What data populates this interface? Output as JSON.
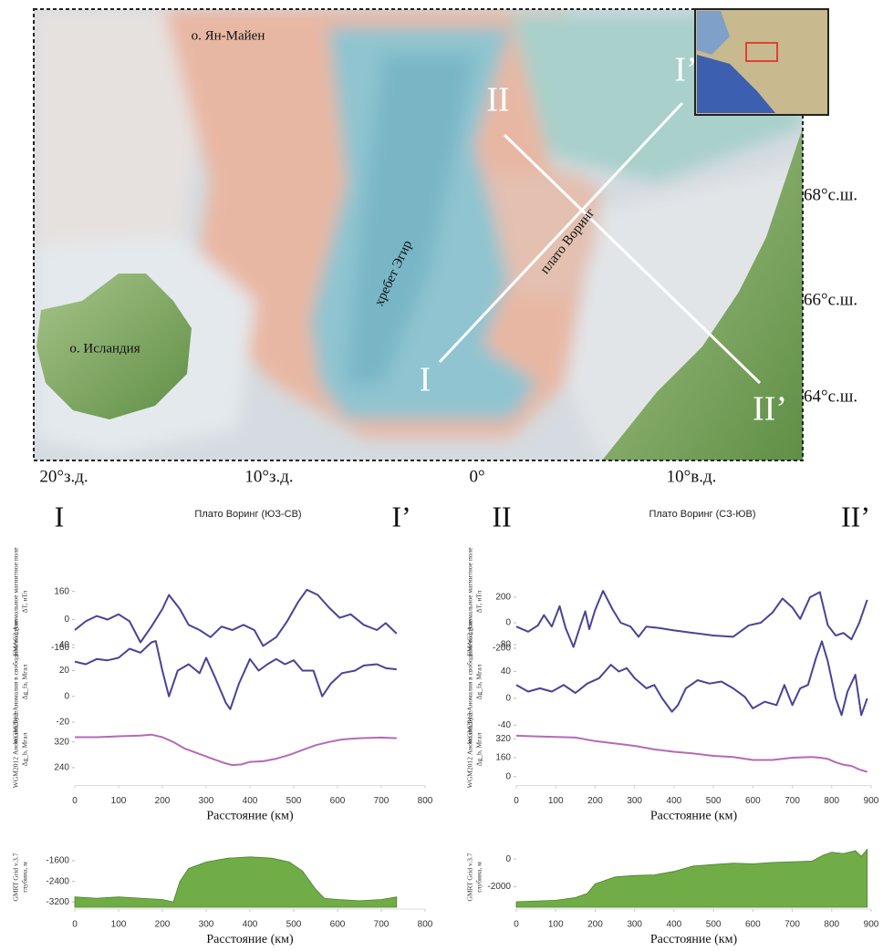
{
  "map": {
    "places": [
      "о. Ян-Майен",
      "о. Исландия",
      "хребет Эгир",
      "плато Воринг"
    ],
    "profile_ends": [
      "I",
      "I’",
      "II",
      "II’"
    ],
    "latitudes": [
      "68°с.ш.",
      "66°с.ш.",
      "64°с.ш."
    ],
    "longitudes": [
      "20°з.д.",
      "10°з.д.",
      "0°",
      "10°в.д."
    ]
  },
  "chart_data": [
    {
      "type": "line",
      "title_left": "I",
      "title": "Плато Воринг (ЮЗ-СВ)",
      "title_right": "I’",
      "ylabel": [
        "EMAG2 Аномальное магнитное поле",
        "ΔT, нТл"
      ],
      "xlim": [
        0,
        800
      ],
      "ylim": [
        -200,
        200
      ],
      "yticks": [
        160,
        0,
        -160
      ],
      "series": [
        {
          "color": "#4b4296",
          "x": [
            0,
            25,
            50,
            75,
            100,
            125,
            150,
            175,
            200,
            215,
            240,
            260,
            285,
            310,
            335,
            360,
            385,
            410,
            430,
            460,
            485,
            510,
            530,
            555,
            580,
            605,
            630,
            660,
            690,
            710,
            735
          ],
          "values": [
            -60,
            -10,
            20,
            0,
            30,
            -10,
            -130,
            -40,
            60,
            140,
            60,
            -30,
            -60,
            -100,
            -40,
            -60,
            -30,
            -60,
            -150,
            -100,
            -10,
            100,
            170,
            140,
            70,
            10,
            30,
            -30,
            -60,
            -20,
            -80
          ]
        }
      ]
    },
    {
      "type": "line",
      "ylabel": [
        "WGM2012 Аномалия в свободном воздухе",
        "Δg_fa, Мгал"
      ],
      "xlim": [
        0,
        800
      ],
      "ylim": [
        -25,
        48
      ],
      "yticks": [
        40,
        20,
        0,
        -20
      ],
      "series": [
        {
          "color": "#4b4296",
          "x": [
            0,
            25,
            50,
            75,
            100,
            125,
            150,
            175,
            185,
            200,
            215,
            235,
            260,
            285,
            300,
            320,
            345,
            355,
            375,
            400,
            420,
            440,
            460,
            480,
            500,
            520,
            545,
            565,
            585,
            610,
            640,
            660,
            690,
            710,
            735
          ],
          "values": [
            27,
            25,
            29,
            28,
            30,
            37,
            34,
            42,
            43,
            20,
            0,
            20,
            25,
            18,
            30,
            15,
            -5,
            -10,
            10,
            29,
            20,
            25,
            29,
            25,
            28,
            20,
            20,
            0,
            10,
            18,
            20,
            24,
            25,
            22,
            21
          ]
        }
      ]
    },
    {
      "type": "line",
      "ylabel": [
        "WGM2012 Аномалия Буге",
        "Δg_b, Мгал"
      ],
      "xlim": [
        0,
        800
      ],
      "ylim": [
        190,
        345
      ],
      "yticks": [
        320,
        240
      ],
      "xticks": [
        0,
        100,
        200,
        300,
        400,
        500,
        600,
        700,
        800
      ],
      "xlabel": "Расстояние (км)",
      "series": [
        {
          "color": "#b46ab6",
          "x": [
            0,
            50,
            100,
            150,
            175,
            200,
            225,
            250,
            280,
            310,
            340,
            360,
            380,
            400,
            430,
            460,
            490,
            520,
            550,
            580,
            610,
            650,
            700,
            735
          ],
          "values": [
            335,
            335,
            338,
            340,
            343,
            335,
            320,
            300,
            285,
            270,
            255,
            248,
            250,
            258,
            260,
            268,
            280,
            295,
            310,
            320,
            328,
            332,
            334,
            332
          ]
        }
      ]
    },
    {
      "type": "area",
      "ylabel": [
        "GMRT Grid v.3.7",
        "глубина, м"
      ],
      "xlim": [
        0,
        800
      ],
      "ylim": [
        -3400,
        -1000
      ],
      "yticks": [
        -1600,
        -2400,
        -3200
      ],
      "xticks": [
        0,
        100,
        200,
        300,
        400,
        500,
        600,
        700,
        800
      ],
      "xlabel": "Расстояние (км)",
      "series": [
        {
          "color": "#70ad47",
          "x": [
            0,
            50,
            100,
            150,
            200,
            225,
            240,
            260,
            300,
            350,
            400,
            450,
            490,
            520,
            550,
            570,
            600,
            650,
            700,
            735
          ],
          "values": [
            -3000,
            -3050,
            -3000,
            -3050,
            -3100,
            -3200,
            -2400,
            -1900,
            -1650,
            -1500,
            -1450,
            -1500,
            -1650,
            -2000,
            -2700,
            -3050,
            -3100,
            -3150,
            -3100,
            -3000
          ]
        }
      ]
    },
    {
      "type": "line",
      "title_left": "II",
      "title": "Плато Воринг (СЗ-ЮВ)",
      "title_right": "II’",
      "ylabel": [
        "EMAG2 Аномальное магнитное поле",
        "ΔT, нТл"
      ],
      "xlim": [
        0,
        900
      ],
      "ylim": [
        -250,
        300
      ],
      "yticks": [
        200,
        0,
        -200
      ],
      "series": [
        {
          "color": "#4b4296",
          "x": [
            0,
            30,
            55,
            70,
            90,
            110,
            125,
            145,
            165,
            175,
            185,
            200,
            220,
            245,
            265,
            290,
            310,
            330,
            360,
            400,
            450,
            500,
            550,
            590,
            620,
            650,
            675,
            700,
            720,
            745,
            770,
            790,
            810,
            830,
            850,
            870,
            890
          ],
          "values": [
            -30,
            -70,
            -20,
            60,
            -30,
            130,
            -40,
            -190,
            0,
            90,
            -50,
            100,
            250,
            100,
            0,
            -30,
            -110,
            -30,
            -40,
            -60,
            -80,
            -100,
            -110,
            -20,
            0,
            80,
            190,
            120,
            30,
            200,
            240,
            -20,
            -100,
            -80,
            -130,
            0,
            180
          ]
        }
      ]
    },
    {
      "type": "line",
      "ylabel": [
        "WGM2012 Аномалия в свободном воздухе",
        "Δg_fa, Мгал"
      ],
      "xlim": [
        0,
        900
      ],
      "ylim": [
        -45,
        95
      ],
      "yticks": [
        80,
        40,
        0,
        -40
      ],
      "series": [
        {
          "color": "#4b4296",
          "x": [
            0,
            30,
            60,
            90,
            120,
            150,
            180,
            210,
            240,
            260,
            280,
            300,
            330,
            350,
            370,
            395,
            410,
            430,
            460,
            490,
            520,
            550,
            580,
            600,
            630,
            660,
            680,
            700,
            720,
            740,
            760,
            775,
            790,
            810,
            825,
            840,
            860,
            875,
            890
          ],
          "values": [
            20,
            10,
            15,
            10,
            20,
            8,
            22,
            30,
            50,
            40,
            45,
            30,
            15,
            20,
            0,
            -20,
            -10,
            15,
            27,
            22,
            25,
            15,
            2,
            -15,
            -5,
            -10,
            20,
            -10,
            15,
            20,
            60,
            85,
            55,
            0,
            -25,
            10,
            35,
            -25,
            0
          ]
        }
      ]
    },
    {
      "type": "line",
      "ylabel": [
        "WGM2012 Аномалия Буге",
        "Δg_b, Мгал"
      ],
      "xlim": [
        0,
        900
      ],
      "ylim": [
        -60,
        360
      ],
      "yticks": [
        320,
        160,
        0
      ],
      "xticks": [
        0,
        100,
        200,
        300,
        400,
        500,
        600,
        700,
        800,
        900
      ],
      "xlabel": "Расстояние (км)",
      "series": [
        {
          "color": "#b46ab6",
          "x": [
            0,
            50,
            100,
            150,
            200,
            250,
            300,
            350,
            400,
            450,
            500,
            550,
            600,
            650,
            700,
            750,
            770,
            790,
            810,
            830,
            850,
            870,
            890
          ],
          "values": [
            345,
            340,
            335,
            330,
            300,
            280,
            260,
            230,
            210,
            195,
            175,
            165,
            140,
            140,
            160,
            165,
            160,
            150,
            120,
            100,
            90,
            60,
            40
          ]
        }
      ]
    },
    {
      "type": "area",
      "ylabel": [
        "GMRT Grid v.3.7",
        "глубина, м"
      ],
      "xlim": [
        0,
        900
      ],
      "ylim": [
        -3500,
        1000
      ],
      "yticks": [
        0,
        -2000
      ],
      "xticks": [
        0,
        100,
        200,
        300,
        400,
        500,
        600,
        700,
        800,
        900
      ],
      "xlabel": "Расстояние (км)",
      "series": [
        {
          "color": "#70ad47",
          "x": [
            0,
            100,
            150,
            180,
            200,
            250,
            300,
            350,
            400,
            450,
            500,
            550,
            600,
            650,
            700,
            750,
            780,
            800,
            830,
            860,
            875,
            890
          ],
          "values": [
            -3100,
            -3000,
            -2800,
            -2500,
            -1800,
            -1300,
            -1200,
            -1150,
            -900,
            -500,
            -400,
            -300,
            -350,
            -250,
            -200,
            -150,
            300,
            500,
            400,
            600,
            200,
            700
          ]
        }
      ]
    }
  ]
}
